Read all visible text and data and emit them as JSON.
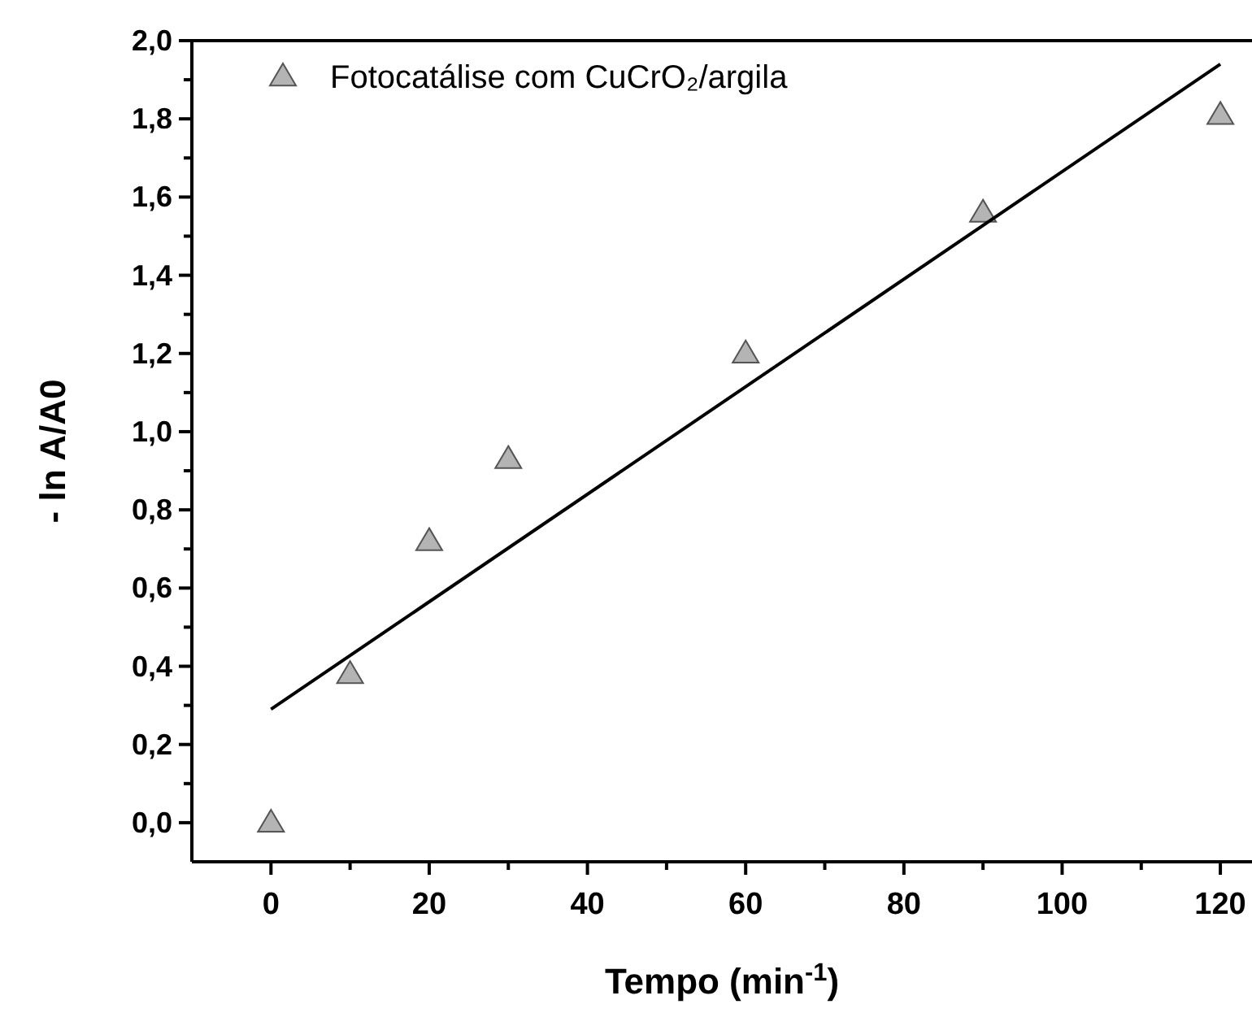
{
  "chart_data": {
    "type": "scatter",
    "xlabel": "Tempo (min$^{-1}$)",
    "ylabel": "- ln A/A0",
    "x": [
      0,
      10,
      20,
      30,
      60,
      90,
      120
    ],
    "series": [
      {
        "name": "Fotocatálise com CuCrO₂/argila",
        "color": "#b4b4b4",
        "values": [
          0.0,
          0.38,
          0.72,
          0.93,
          1.2,
          1.56,
          1.81
        ],
        "marker": "triangle"
      },
      {
        "type": "line",
        "color": "#000000",
        "x": [
          0,
          120
        ],
        "values": [
          0.29,
          1.94
        ],
        "marker": "none"
      }
    ],
    "xlim": [
      -10,
      124
    ],
    "ylim": [
      -0.1,
      2.0
    ],
    "xticks": [
      0,
      {
        "value": 10,
        "label": null
      },
      20,
      {
        "value": 30,
        "label": null
      },
      40,
      {
        "value": 50,
        "label": null
      },
      60,
      {
        "value": 70,
        "label": null
      },
      80,
      {
        "value": 90,
        "label": null
      },
      100,
      {
        "value": 110,
        "label": null
      },
      120
    ],
    "yticks": [
      {
        "value": 0.0,
        "label": "0,0"
      },
      {
        "value": 0.1,
        "label": null
      },
      {
        "value": 0.2,
        "label": "0,2"
      },
      {
        "value": 0.3,
        "label": null
      },
      {
        "value": 0.4,
        "label": "0,4"
      },
      {
        "value": 0.5,
        "label": null
      },
      {
        "value": 0.6,
        "label": "0,6"
      },
      {
        "value": 0.7,
        "label": null
      },
      {
        "value": 0.8,
        "label": "0,8"
      },
      {
        "value": 0.9,
        "label": null
      },
      {
        "value": 1.0,
        "label": "1,0"
      },
      {
        "value": 1.1,
        "label": null
      },
      {
        "value": 1.2,
        "label": "1,2"
      },
      {
        "value": 1.3,
        "label": null
      },
      {
        "value": 1.4,
        "label": "1,4"
      },
      {
        "value": 1.5,
        "label": null
      },
      {
        "value": 1.6,
        "label": "1,6"
      },
      {
        "value": 1.7,
        "label": null
      },
      {
        "value": 1.8,
        "label": "1,8"
      },
      {
        "value": 1.9,
        "label": null
      },
      {
        "value": 2.0,
        "label": "2,0"
      }
    ],
    "grid": false,
    "legend": "top left"
  }
}
